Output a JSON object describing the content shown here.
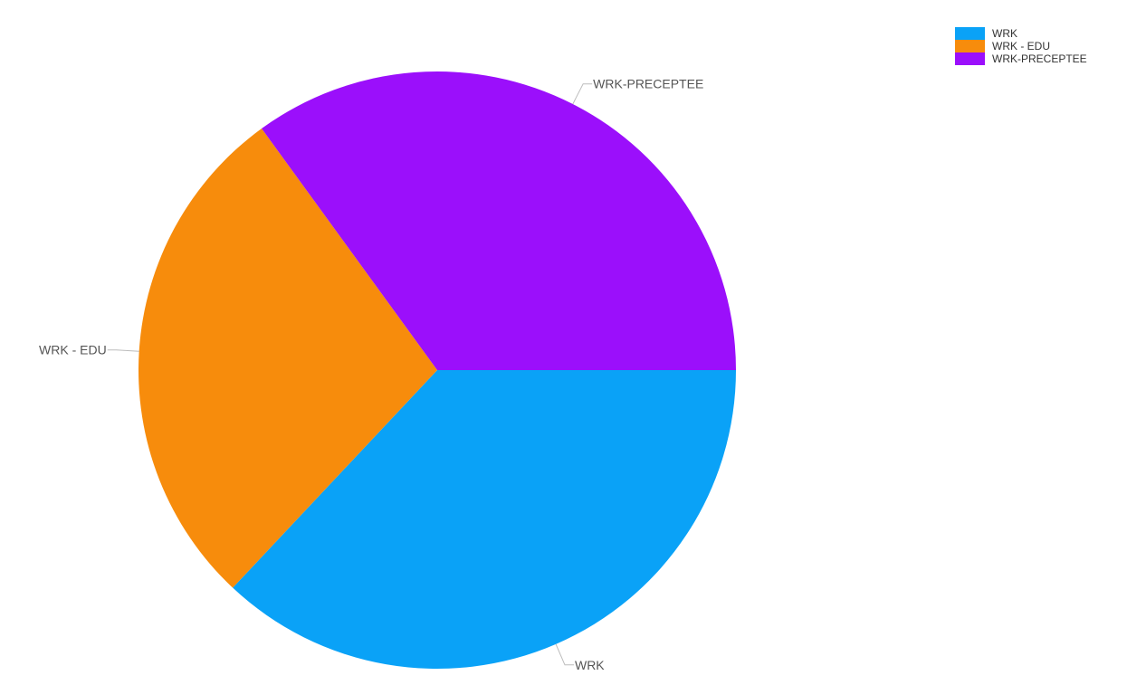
{
  "chart_data": {
    "type": "pie",
    "labels": [
      "WRK",
      "WRK - EDU",
      "WRK-PRECEPTEE"
    ],
    "values": [
      37,
      28,
      35
    ],
    "colors": [
      "#0aa2f7",
      "#f78c0c",
      "#9b0ffb"
    ],
    "legend_position": "top-right"
  }
}
